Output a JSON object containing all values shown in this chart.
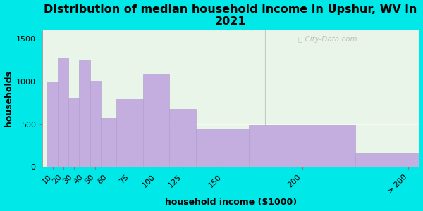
{
  "categories": [
    "10",
    "20",
    "30",
    "40",
    "50",
    "60",
    "75",
    "100",
    "125",
    "150",
    "200",
    "> 200"
  ],
  "x_positions": [
    10,
    20,
    30,
    40,
    50,
    60,
    75,
    100,
    125,
    150,
    200,
    300
  ],
  "bar_widths": [
    10,
    10,
    10,
    10,
    10,
    15,
    25,
    25,
    25,
    50,
    100,
    100
  ],
  "values": [
    1000,
    1280,
    800,
    1250,
    1010,
    570,
    790,
    1090,
    680,
    440,
    490,
    160
  ],
  "bar_color": "#c4aee0",
  "bar_edgecolor": "#b09acc",
  "title": "Distribution of median household income in Upshur, WV in\n2021",
  "xlabel": "household income ($1000)",
  "ylabel": "households",
  "ylim": [
    0,
    1600
  ],
  "yticks": [
    0,
    500,
    1000,
    1500
  ],
  "bg_outer": "#00e8e8",
  "bg_plot_top": "#e8f5e8",
  "bg_plot_bottom": "#f5fff5",
  "title_fontsize": 11.5,
  "label_fontsize": 9,
  "tick_fontsize": 8,
  "watermark": "City-Data.com",
  "xlim": [
    5,
    360
  ],
  "divider_x": 215
}
